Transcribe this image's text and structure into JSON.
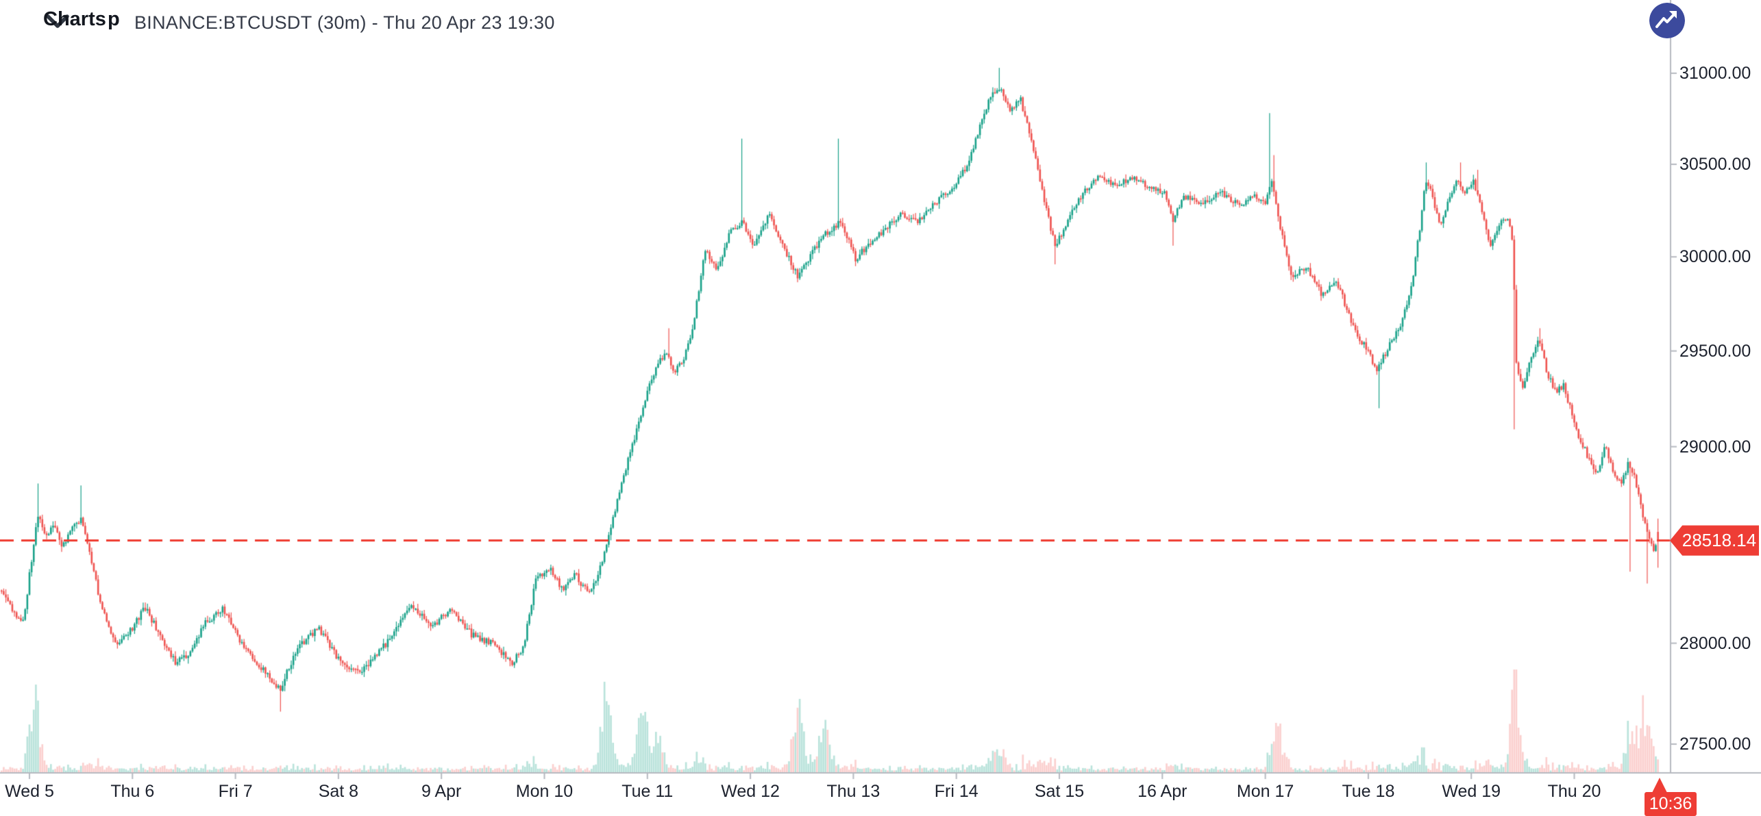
{
  "header": {
    "title": "BINANCE:BTCUSDT (30m) - Thu 20 Apr 23 19:30",
    "collapse_icon": "chevron-down-icon",
    "logo_text": "Charts",
    "logo_partial_text": "p",
    "logo_icon": "trend-line-arrow-icon",
    "logo_bg_color": "#3c4a9d",
    "title_color": "#353b48"
  },
  "chart_data": {
    "type": "candlestick",
    "symbol": "BINANCE:BTCUSDT",
    "interval": "30m",
    "current_bar_time": "Thu 20 Apr 23 19:30",
    "last_price": 28518.14,
    "last_price_label": "28518.14",
    "countdown": "10:36",
    "price_line_value": 28518.14,
    "grid": "off",
    "scale": "logarithmic",
    "y_axis": {
      "side": "right",
      "visible_price_range": [
        27364,
        31408
      ],
      "ticks": [
        {
          "value": 31000,
          "label": "31000.00"
        },
        {
          "value": 30500,
          "label": "30500.00"
        },
        {
          "value": 30000,
          "label": "30000.00"
        },
        {
          "value": 29500,
          "label": "29500.00"
        },
        {
          "value": 29000,
          "label": "29000.00"
        },
        {
          "value": 28000,
          "label": "28000.00"
        },
        {
          "value": 27500,
          "label": "27500.00"
        }
      ]
    },
    "x_axis": {
      "labels": [
        {
          "day": 0,
          "label": "Wed 5"
        },
        {
          "day": 1,
          "label": "Thu 6"
        },
        {
          "day": 2,
          "label": "Fri 7"
        },
        {
          "day": 3,
          "label": "Sat 8"
        },
        {
          "day": 4,
          "label": "9 Apr"
        },
        {
          "day": 5,
          "label": "Mon 10"
        },
        {
          "day": 6,
          "label": "Tue 11"
        },
        {
          "day": 7,
          "label": "Wed 12"
        },
        {
          "day": 8,
          "label": "Thu 13"
        },
        {
          "day": 9,
          "label": "Fri 14"
        },
        {
          "day": 10,
          "label": "Sat 15"
        },
        {
          "day": 11,
          "label": "16 Apr"
        },
        {
          "day": 12,
          "label": "Mon 17"
        },
        {
          "day": 13,
          "label": "Tue 18"
        },
        {
          "day": 14,
          "label": "Wed 19"
        },
        {
          "day": 15,
          "label": "Thu 20"
        }
      ]
    },
    "colors": {
      "up": "#18a189",
      "down": "#ef5350",
      "vol_up": "rgba(24,161,137,0.30)",
      "vol_down": "rgba(239,83,80,0.28)",
      "price_line": "#ef3b30",
      "tag_bg": "#ee3d35",
      "tag_text": "#ffffff",
      "axis_line": "#b6b9c0",
      "axis_text": "#1d222e"
    },
    "waypoint_format": [
      "days_since_Wed5_0000",
      "price"
    ],
    "price_path": [
      [
        -0.28,
        28280
      ],
      [
        -0.17,
        28170
      ],
      [
        -0.06,
        28100
      ],
      [
        0.02,
        28420
      ],
      [
        0.08,
        28650
      ],
      [
        0.16,
        28530
      ],
      [
        0.24,
        28610
      ],
      [
        0.32,
        28490
      ],
      [
        0.4,
        28570
      ],
      [
        0.5,
        28630
      ],
      [
        0.58,
        28470
      ],
      [
        0.7,
        28170
      ],
      [
        0.85,
        27990
      ],
      [
        1.0,
        28080
      ],
      [
        1.12,
        28180
      ],
      [
        1.25,
        28060
      ],
      [
        1.42,
        27900
      ],
      [
        1.55,
        27950
      ],
      [
        1.7,
        28100
      ],
      [
        1.88,
        28170
      ],
      [
        2.05,
        28000
      ],
      [
        2.25,
        27880
      ],
      [
        2.43,
        27770
      ],
      [
        2.6,
        27970
      ],
      [
        2.8,
        28080
      ],
      [
        3.0,
        27920
      ],
      [
        3.2,
        27850
      ],
      [
        3.45,
        27990
      ],
      [
        3.7,
        28190
      ],
      [
        3.92,
        28090
      ],
      [
        4.1,
        28170
      ],
      [
        4.3,
        28040
      ],
      [
        4.5,
        28000
      ],
      [
        4.68,
        27900
      ],
      [
        4.8,
        27990
      ],
      [
        4.92,
        28330
      ],
      [
        5.05,
        28380
      ],
      [
        5.18,
        28270
      ],
      [
        5.3,
        28350
      ],
      [
        5.42,
        28250
      ],
      [
        5.52,
        28340
      ],
      [
        5.62,
        28520
      ],
      [
        5.72,
        28760
      ],
      [
        5.82,
        28940
      ],
      [
        5.92,
        29140
      ],
      [
        6.02,
        29320
      ],
      [
        6.1,
        29430
      ],
      [
        6.18,
        29500
      ],
      [
        6.26,
        29380
      ],
      [
        6.36,
        29460
      ],
      [
        6.44,
        29620
      ],
      [
        6.56,
        30030
      ],
      [
        6.68,
        29930
      ],
      [
        6.8,
        30130
      ],
      [
        6.92,
        30190
      ],
      [
        7.04,
        30060
      ],
      [
        7.18,
        30230
      ],
      [
        7.32,
        30050
      ],
      [
        7.46,
        29900
      ],
      [
        7.6,
        30020
      ],
      [
        7.74,
        30130
      ],
      [
        7.88,
        30190
      ],
      [
        8.02,
        29990
      ],
      [
        8.16,
        30070
      ],
      [
        8.3,
        30140
      ],
      [
        8.46,
        30240
      ],
      [
        8.62,
        30190
      ],
      [
        8.78,
        30290
      ],
      [
        8.94,
        30350
      ],
      [
        9.1,
        30490
      ],
      [
        9.22,
        30690
      ],
      [
        9.33,
        30870
      ],
      [
        9.42,
        30920
      ],
      [
        9.52,
        30790
      ],
      [
        9.62,
        30860
      ],
      [
        9.74,
        30610
      ],
      [
        9.86,
        30280
      ],
      [
        9.96,
        30060
      ],
      [
        10.08,
        30190
      ],
      [
        10.22,
        30340
      ],
      [
        10.38,
        30430
      ],
      [
        10.55,
        30380
      ],
      [
        10.72,
        30430
      ],
      [
        10.9,
        30370
      ],
      [
        11.02,
        30340
      ],
      [
        11.1,
        30190
      ],
      [
        11.2,
        30330
      ],
      [
        11.38,
        30290
      ],
      [
        11.56,
        30350
      ],
      [
        11.74,
        30280
      ],
      [
        11.9,
        30330
      ],
      [
        12.0,
        30300
      ],
      [
        12.06,
        30420
      ],
      [
        12.14,
        30160
      ],
      [
        12.26,
        29890
      ],
      [
        12.4,
        29950
      ],
      [
        12.55,
        29800
      ],
      [
        12.7,
        29860
      ],
      [
        12.78,
        29740
      ],
      [
        12.85,
        29640
      ],
      [
        12.92,
        29560
      ],
      [
        13.0,
        29500
      ],
      [
        13.08,
        29400
      ],
      [
        13.16,
        29480
      ],
      [
        13.24,
        29570
      ],
      [
        13.32,
        29650
      ],
      [
        13.42,
        29850
      ],
      [
        13.5,
        30150
      ],
      [
        13.56,
        30420
      ],
      [
        13.62,
        30330
      ],
      [
        13.7,
        30170
      ],
      [
        13.78,
        30300
      ],
      [
        13.86,
        30420
      ],
      [
        13.94,
        30340
      ],
      [
        14.02,
        30420
      ],
      [
        14.1,
        30240
      ],
      [
        14.18,
        30060
      ],
      [
        14.26,
        30160
      ],
      [
        14.34,
        30220
      ],
      [
        14.4,
        30100
      ],
      [
        14.44,
        29400
      ],
      [
        14.5,
        29290
      ],
      [
        14.58,
        29460
      ],
      [
        14.66,
        29560
      ],
      [
        14.74,
        29380
      ],
      [
        14.82,
        29290
      ],
      [
        14.9,
        29320
      ],
      [
        14.98,
        29160
      ],
      [
        15.06,
        29030
      ],
      [
        15.14,
        28940
      ],
      [
        15.22,
        28850
      ],
      [
        15.3,
        29000
      ],
      [
        15.38,
        28870
      ],
      [
        15.46,
        28800
      ],
      [
        15.52,
        28920
      ],
      [
        15.58,
        28850
      ],
      [
        15.64,
        28700
      ],
      [
        15.68,
        28620
      ],
      [
        15.72,
        28560
      ],
      [
        15.77,
        28470
      ],
      [
        15.8125,
        28518.14
      ]
    ],
    "spikes": [
      {
        "t": 0.08,
        "high": 28810
      },
      {
        "t": 0.5,
        "high": 28800
      },
      {
        "t": 2.43,
        "low": 27660
      },
      {
        "t": 6.2,
        "high": 29620
      },
      {
        "t": 6.92,
        "high": 30640
      },
      {
        "t": 7.86,
        "high": 30640
      },
      {
        "t": 9.42,
        "high": 31030
      },
      {
        "t": 9.96,
        "low": 29960
      },
      {
        "t": 11.1,
        "low": 30060
      },
      {
        "t": 12.04,
        "high": 30780
      },
      {
        "t": 12.08,
        "high": 30550
      },
      {
        "t": 13.1,
        "low": 29200
      },
      {
        "t": 13.56,
        "high": 30510
      },
      {
        "t": 13.9,
        "high": 30510
      },
      {
        "t": 14.06,
        "high": 30470
      },
      {
        "t": 14.42,
        "low": 29090
      },
      {
        "t": 14.66,
        "high": 29620
      },
      {
        "t": 15.55,
        "low": 28360
      },
      {
        "t": 15.7,
        "low": 28300
      },
      {
        "t": 15.8125,
        "low": 28380
      },
      {
        "t": 15.8125,
        "high": 28630
      }
    ],
    "volume_boosts": [
      {
        "t": 0.06,
        "f": 1.6
      },
      {
        "t": 5.6,
        "f": 2.2
      },
      {
        "t": 5.95,
        "f": 1.8
      },
      {
        "t": 6.1,
        "f": 1.2
      },
      {
        "t": 7.47,
        "f": 2.4
      },
      {
        "t": 7.72,
        "f": 2.0
      },
      {
        "t": 9.4,
        "f": 0.9
      },
      {
        "t": 12.1,
        "f": 1.0
      },
      {
        "t": 14.42,
        "f": 2.0
      },
      {
        "t": 15.55,
        "f": 1.2
      },
      {
        "t": 15.7,
        "f": 1.6
      }
    ]
  }
}
